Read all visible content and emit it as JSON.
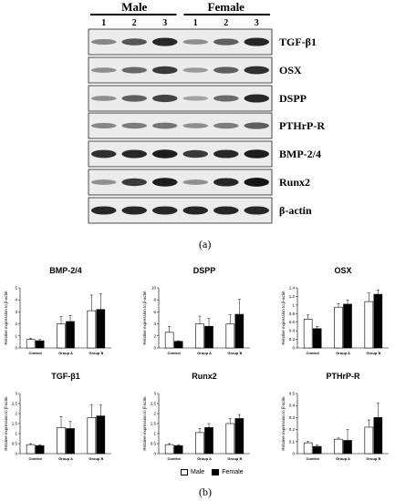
{
  "figure": {
    "panel_a_label": "(a)",
    "panel_b_label": "(b)"
  },
  "blot": {
    "sex_labels": [
      "Male",
      "Female"
    ],
    "lanes": [
      "1",
      "2",
      "3",
      "1",
      "2",
      "3"
    ],
    "rows": [
      {
        "label": "TGF-β1",
        "intensity": [
          0.35,
          0.6,
          0.85,
          0.3,
          0.55,
          0.85
        ]
      },
      {
        "label": "OSX",
        "intensity": [
          0.3,
          0.5,
          0.75,
          0.25,
          0.55,
          0.8
        ]
      },
      {
        "label": "DSPP",
        "intensity": [
          0.3,
          0.55,
          0.7,
          0.2,
          0.5,
          0.85
        ]
      },
      {
        "label": "PTHrP-R",
        "intensity": [
          0.35,
          0.4,
          0.45,
          0.3,
          0.4,
          0.55
        ]
      },
      {
        "label": "BMP-2/4",
        "intensity": [
          0.8,
          0.85,
          0.9,
          0.75,
          0.85,
          0.9
        ]
      },
      {
        "label": "Runx2",
        "intensity": [
          0.3,
          0.75,
          0.9,
          0.3,
          0.85,
          0.95
        ]
      },
      {
        "label": "β-actin",
        "intensity": [
          0.85,
          0.85,
          0.85,
          0.85,
          0.85,
          0.85
        ]
      }
    ]
  },
  "colors": {
    "male": "#ffffff",
    "female": "#000000"
  },
  "legend": {
    "male": "Male",
    "female": "Female"
  },
  "chart_data": [
    {
      "type": "bar",
      "title": "BMP-2/4",
      "ylabel": "Relative expression to β-actin",
      "categories": [
        "Control",
        "Group A",
        "Group B"
      ],
      "ylim": [
        0,
        5
      ],
      "yticks": [
        "0",
        "1",
        "2",
        "3",
        "4",
        "5"
      ],
      "series": [
        {
          "name": "Male",
          "values": [
            0.7,
            2.0,
            3.1
          ],
          "errors": [
            0.1,
            0.6,
            1.3
          ]
        },
        {
          "name": "Female",
          "values": [
            0.6,
            2.2,
            3.2
          ],
          "errors": [
            0.1,
            0.5,
            1.3
          ]
        }
      ],
      "annotations": [
        "*",
        "*"
      ],
      "legend": "bottom"
    },
    {
      "type": "bar",
      "title": "DSPP",
      "ylabel": "Relative expression to β-actin",
      "categories": [
        "Control",
        "Group A",
        "Group B"
      ],
      "ylim": [
        0,
        10
      ],
      "yticks": [
        "0",
        "2",
        "4",
        "6",
        "8",
        "10"
      ],
      "series": [
        {
          "name": "Male",
          "values": [
            2.6,
            4.0,
            4.0
          ],
          "errors": [
            1.0,
            1.3,
            1.5
          ]
        },
        {
          "name": "Female",
          "values": [
            1.1,
            3.6,
            5.6
          ],
          "errors": [
            0.1,
            1.3,
            2.5
          ]
        }
      ],
      "annotations": [
        "*"
      ],
      "legend": "bottom"
    },
    {
      "type": "bar",
      "title": "OSX",
      "ylabel": "Relative expression to β-actin",
      "categories": [
        "Control",
        "Group A",
        "Group B"
      ],
      "ylim": [
        0,
        1.4
      ],
      "yticks": [
        "0",
        "0.2",
        "0.4",
        "0.6",
        "0.8",
        "1",
        "1.2",
        "1.4"
      ],
      "series": [
        {
          "name": "Male",
          "values": [
            0.67,
            0.95,
            1.08
          ],
          "errors": [
            0.1,
            0.08,
            0.2
          ]
        },
        {
          "name": "Female",
          "values": [
            0.45,
            1.02,
            1.25
          ],
          "errors": [
            0.05,
            0.1,
            0.1
          ]
        }
      ],
      "annotations": [
        "*",
        "*",
        "*"
      ],
      "legend": "bottom"
    },
    {
      "type": "bar",
      "title": "TGF-β1",
      "ylabel": "Relative expression to β-actin",
      "categories": [
        "Control",
        "Group A",
        "Group B"
      ],
      "ylim": [
        0,
        3
      ],
      "yticks": [
        "0",
        "0.5",
        "1",
        "1.5",
        "2",
        "2.5",
        "3"
      ],
      "series": [
        {
          "name": "Male",
          "values": [
            0.45,
            1.3,
            1.8
          ],
          "errors": [
            0.05,
            0.55,
            0.65
          ]
        },
        {
          "name": "Female",
          "values": [
            0.4,
            1.25,
            1.88
          ],
          "errors": [
            0.05,
            0.35,
            0.55
          ]
        }
      ],
      "annotations": [
        "*",
        "*"
      ],
      "legend": "bottom"
    },
    {
      "type": "bar",
      "title": "Runx2",
      "ylabel": "Relative expression to β-actin",
      "categories": [
        "Control",
        "Group A",
        "Group B"
      ],
      "ylim": [
        0,
        3
      ],
      "yticks": [
        "0",
        "0.5",
        "1",
        "1.5",
        "2",
        "2.5",
        "3"
      ],
      "series": [
        {
          "name": "Male",
          "values": [
            0.45,
            1.05,
            1.5
          ],
          "errors": [
            0.05,
            0.2,
            0.25
          ]
        },
        {
          "name": "Female",
          "values": [
            0.4,
            1.3,
            1.75
          ],
          "errors": [
            0.05,
            0.2,
            0.2
          ]
        }
      ],
      "annotations": [
        "*",
        "*",
        "*"
      ],
      "legend": "bottom"
    },
    {
      "type": "bar",
      "title": "PTHrP-R",
      "ylabel": "Relative expression to β-actin",
      "categories": [
        "Control",
        "Group A",
        "Group B"
      ],
      "ylim": [
        0,
        0.5
      ],
      "yticks": [
        "0",
        "0.1",
        "0.2",
        "0.3",
        "0.4",
        "0.5"
      ],
      "series": [
        {
          "name": "Male",
          "values": [
            0.09,
            0.12,
            0.22
          ],
          "errors": [
            0.01,
            0.01,
            0.06
          ]
        },
        {
          "name": "Female",
          "values": [
            0.06,
            0.11,
            0.3
          ],
          "errors": [
            0.01,
            0.09,
            0.12
          ]
        }
      ],
      "annotations": [
        "*"
      ],
      "legend": "bottom"
    }
  ]
}
